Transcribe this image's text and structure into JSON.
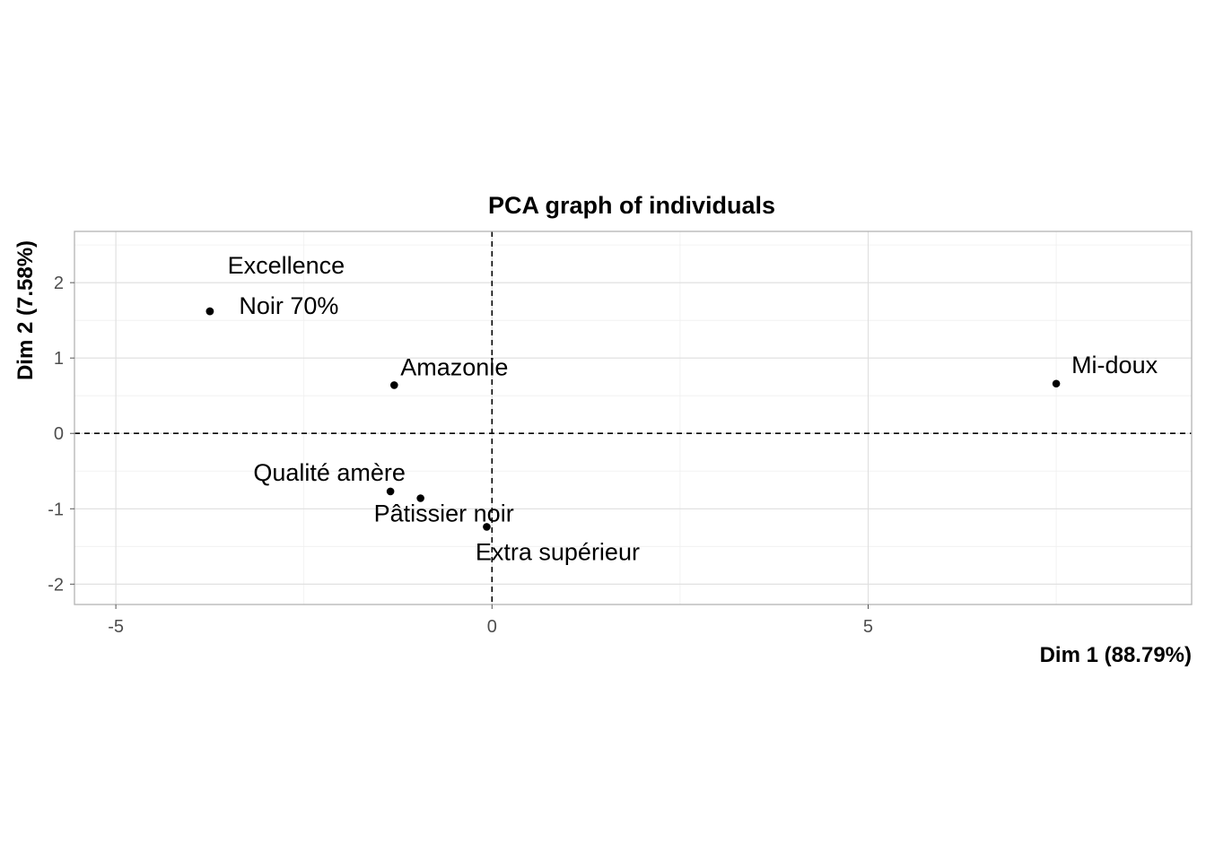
{
  "chart_data": {
    "type": "scatter",
    "title": "PCA graph of individuals",
    "xlabel": "Dim 1 (88.79%)",
    "ylabel": "Dim 2 (7.58%)",
    "xlim": [
      -5.55,
      9.3
    ],
    "ylim": [
      -2.27,
      2.68
    ],
    "xticks": [
      -5,
      0,
      5
    ],
    "yticks": [
      -2,
      -1,
      0,
      1,
      2
    ],
    "grid": true,
    "reference_lines": {
      "x": 0,
      "y": 0,
      "style": "dashed"
    },
    "points": [
      {
        "name": "Excellence",
        "x": -3.75,
        "y": 1.62
      },
      {
        "name": "Noir 70%",
        "x": -3.75,
        "y": 1.62
      },
      {
        "name": "Amazonie",
        "x": -1.3,
        "y": 0.64
      },
      {
        "name": "Mi-doux",
        "x": 7.5,
        "y": 0.66
      },
      {
        "name": "Qualité amère",
        "x": -1.35,
        "y": -0.77
      },
      {
        "name": "Pâtissier noir",
        "x": -0.95,
        "y": -0.86
      },
      {
        "name": "Extra supérieur",
        "x": -0.07,
        "y": -1.24
      }
    ]
  }
}
